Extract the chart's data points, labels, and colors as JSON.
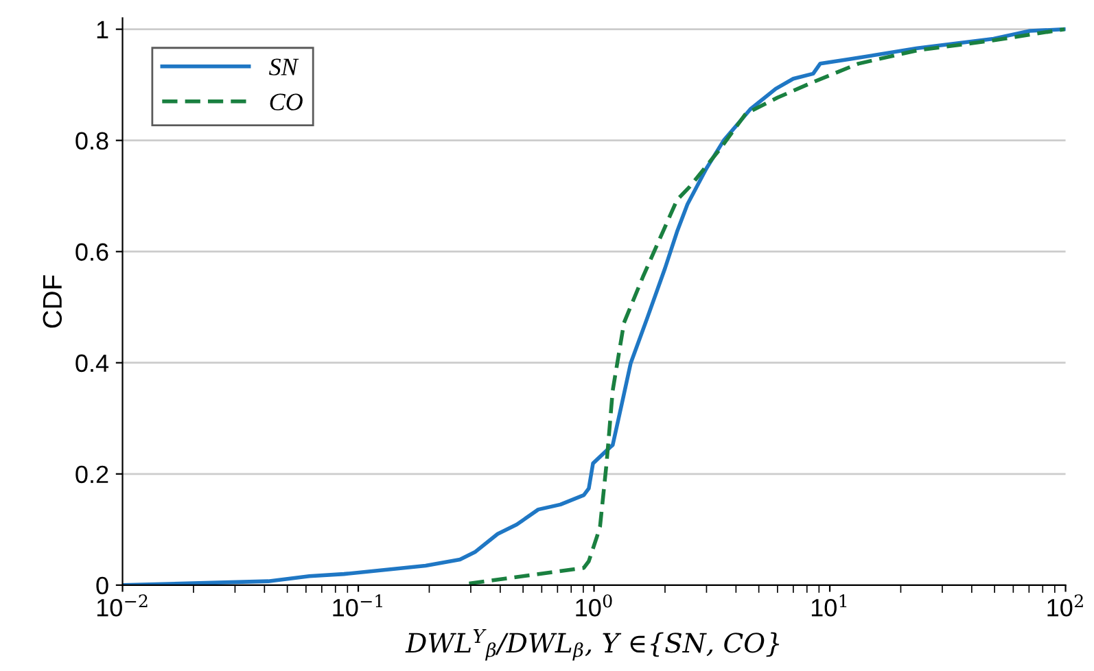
{
  "chart_data": {
    "type": "line",
    "xlabel": "DWL$^{Y}$$_{β}$/DWL$_{β}$, Y ∈{SN, CO}",
    "ylabel": "CDF",
    "log": "x",
    "grid": "y",
    "legend": "top left",
    "marker": "none",
    "xlim": [
      0.01,
      100
    ],
    "xticks": [
      {
        "value": 0.01,
        "label": "10$^{−2}$"
      },
      {
        "value": 0.1,
        "label": "10$^{−1}$"
      },
      {
        "value": 1,
        "label": "10$^{0}$"
      },
      {
        "value": 10,
        "label": "10$^{1}$"
      },
      {
        "value": 100,
        "label": "10$^{2}$"
      }
    ],
    "ylim": [
      0,
      1.02
    ],
    "yticks": [
      0,
      0.2,
      0.4,
      0.6,
      0.8,
      1
    ],
    "series": [
      {
        "name": "SN",
        "color": "#1f77c4",
        "line_style": "solid",
        "x": [
          0.01,
          0.0415,
          0.062,
          0.087,
          0.193,
          0.27,
          0.314,
          0.39,
          0.47,
          0.58,
          0.72,
          0.905,
          0.95,
          0.99,
          1.17,
          1.2,
          1.31,
          1.43,
          1.68,
          2.0,
          2.25,
          2.49,
          3.0,
          3.55,
          4.6,
          5.9,
          7.0,
          8.5,
          9.1,
          12.1,
          23.5,
          49.5,
          70.6,
          99
        ],
        "values": [
          0,
          0.007,
          0.016,
          0.02,
          0.035,
          0.046,
          0.06,
          0.092,
          0.109,
          0.136,
          0.145,
          0.162,
          0.174,
          0.219,
          0.248,
          0.252,
          0.325,
          0.399,
          0.48,
          0.57,
          0.636,
          0.685,
          0.75,
          0.8,
          0.856,
          0.893,
          0.911,
          0.92,
          0.938,
          0.946,
          0.966,
          0.983,
          0.997,
          1.0
        ]
      },
      {
        "name": "CO",
        "color": "#1a8040",
        "line_style": "dashed",
        "x": [
          0.295,
          0.905,
          0.95,
          1.03,
          1.06,
          1.13,
          1.2,
          1.34,
          1.61,
          1.96,
          2.25,
          2.55,
          3.4,
          4.4,
          6.0,
          8.5,
          13.2,
          23.5,
          49.5,
          99
        ],
        "values": [
          0.003,
          0.031,
          0.043,
          0.088,
          0.105,
          0.219,
          0.35,
          0.472,
          0.554,
          0.636,
          0.693,
          0.717,
          0.783,
          0.848,
          0.877,
          0.905,
          0.938,
          0.962,
          0.98,
          1.0
        ]
      }
    ]
  }
}
